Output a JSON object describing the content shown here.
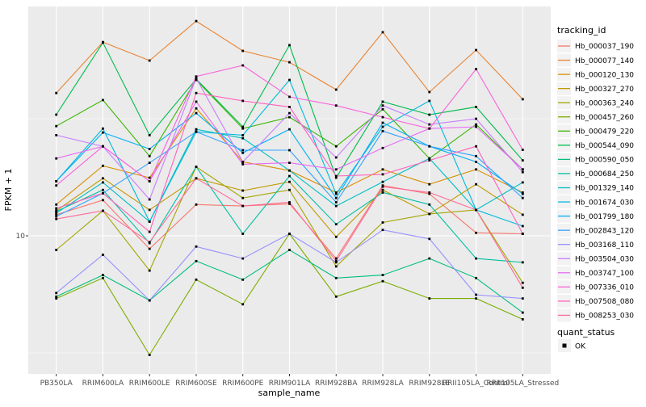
{
  "figure": {
    "y_axis": {
      "label": "FPKM + 1",
      "scale": "log10",
      "tick_labels": [
        "10"
      ]
    },
    "x_axis": {
      "label": "sample_name"
    },
    "legend": {
      "tracking_title": "tracking_id",
      "quant_title": "quant_status",
      "quant_items": [
        {
          "label": "OK",
          "marker": "black-square"
        }
      ]
    },
    "colors": {
      "panel_background": "#EBEBEB",
      "grid": "#FFFFFF",
      "tick_text": "#4D4D4D",
      "marker": "#000000",
      "legend_key_background": "#F2F2F2"
    }
  },
  "chart_data": {
    "type": "line",
    "title": "",
    "xlabel": "sample_name",
    "ylabel": "FPKM + 1",
    "yscale": "log10",
    "ylim": [
      2.6,
      95
    ],
    "grid": "white major gridlines on gray panel; y major at 10",
    "legend_position": "right",
    "marker": "small black square on every point",
    "categories": [
      "PB350LA",
      "RRIM600LA",
      "RRIM600LE",
      "RRIM600SE",
      "RRIM600PE",
      "RRIM901LA",
      "RRIM928BA",
      "RRIM928LA",
      "RRIM928LE",
      "RRII105LA_Control",
      "RRII105LA_Stressed"
    ],
    "series": [
      {
        "name": "Hb_000037_190",
        "color": "#F8766D",
        "values": [
          12.3,
          14.2,
          8.8,
          13.6,
          13.4,
          13.7,
          8.0,
          16.4,
          15.1,
          10.3,
          10.2
        ]
      },
      {
        "name": "Hb_000077_140",
        "color": "#EA8331",
        "values": [
          40.7,
          67.2,
          56.0,
          82.6,
          61.6,
          55.1,
          42.1,
          74.0,
          41.1,
          62.1,
          38.3
        ]
      },
      {
        "name": "Hb_000120_130",
        "color": "#D89000",
        "values": [
          13.6,
          19.9,
          17.7,
          35.0,
          20.7,
          19.0,
          15.3,
          19.2,
          16.6,
          19.2,
          15.3
        ]
      },
      {
        "name": "Hb_000327_270",
        "color": "#C09B00",
        "values": [
          12.8,
          17.6,
          12.9,
          17.6,
          15.6,
          17.0,
          9.9,
          15.7,
          12.4,
          16.6,
          12.3
        ]
      },
      {
        "name": "Hb_000363_240",
        "color": "#A3A500",
        "values": [
          8.7,
          12.8,
          7.1,
          19.7,
          14.5,
          15.7,
          7.4,
          11.4,
          12.4,
          12.9,
          6.3
        ]
      },
      {
        "name": "Hb_000457_260",
        "color": "#7CAE00",
        "values": [
          5.4,
          6.6,
          3.1,
          6.5,
          5.1,
          10.2,
          5.5,
          6.4,
          5.4,
          5.4,
          4.4
        ]
      },
      {
        "name": "Hb_000479_220",
        "color": "#39B600",
        "values": [
          29.4,
          38.0,
          21.9,
          46.3,
          28.7,
          32.1,
          24.1,
          34.7,
          21.4,
          29.9,
          19.2
        ]
      },
      {
        "name": "Hb_000544_090",
        "color": "#00BB4E",
        "values": [
          32.9,
          66.8,
          26.9,
          46.7,
          29.2,
          65.2,
          17.7,
          37.4,
          32.9,
          35.5,
          21.0
        ]
      },
      {
        "name": "Hb_000590_050",
        "color": "#00BF7D",
        "values": [
          5.5,
          6.8,
          5.3,
          7.8,
          6.5,
          8.7,
          6.6,
          6.8,
          8.0,
          6.6,
          4.7
        ]
      },
      {
        "name": "Hb_000684_250",
        "color": "#00C1A3",
        "values": [
          12.7,
          15.7,
          9.3,
          19.7,
          10.2,
          18.0,
          11.2,
          15.3,
          13.6,
          8.0,
          7.7
        ]
      },
      {
        "name": "Hb_001329_140",
        "color": "#00BFC4",
        "values": [
          12.5,
          16.9,
          11.5,
          28.5,
          26.1,
          19.0,
          13.4,
          17.0,
          21.4,
          12.9,
          16.9
        ]
      },
      {
        "name": "Hb_001674_030",
        "color": "#00BADE",
        "values": [
          17.1,
          28.7,
          11.5,
          27.8,
          26.9,
          46.3,
          15.1,
          29.2,
          37.7,
          12.9,
          11.0
        ]
      },
      {
        "name": "Hb_001799_180",
        "color": "#00B0F6",
        "values": [
          17.1,
          27.6,
          23.5,
          33.4,
          22.6,
          28.5,
          14.5,
          30.4,
          24.1,
          20.7,
          15.1
        ]
      },
      {
        "name": "Hb_002843_120",
        "color": "#35A2FF",
        "values": [
          12.1,
          15.2,
          20.5,
          27.8,
          23.2,
          23.2,
          13.9,
          28.0,
          24.1,
          21.9,
          14.5
        ]
      },
      {
        "name": "Hb_003168_110",
        "color": "#9590FF",
        "values": [
          5.7,
          8.3,
          5.3,
          9.0,
          8.0,
          10.2,
          7.7,
          10.6,
          9.7,
          5.6,
          5.4
        ]
      },
      {
        "name": "Hb_003504_030",
        "color": "#C77CFF",
        "values": [
          26.9,
          24.1,
          14.3,
          47.1,
          20.7,
          33.4,
          21.6,
          36.0,
          29.9,
          31.6,
          18.7
        ]
      },
      {
        "name": "Hb_003747_100",
        "color": "#E76BF3",
        "values": [
          21.4,
          24.1,
          17.1,
          37.4,
          20.2,
          20.5,
          19.2,
          23.7,
          28.7,
          29.2,
          19.2
        ]
      },
      {
        "name": "Hb_007336_010",
        "color": "#FA62DB",
        "values": [
          16.4,
          24.1,
          17.1,
          47.9,
          53.4,
          39.2,
          36.0,
          32.1,
          28.7,
          51.5,
          23.3
        ]
      },
      {
        "name": "Hb_007508_080",
        "color": "#FF62BC",
        "values": [
          13.1,
          15.2,
          10.4,
          40.7,
          37.7,
          35.5,
          18.0,
          18.3,
          21.0,
          24.1,
          10.2
        ]
      },
      {
        "name": "Hb_008253_030",
        "color": "#FF6A98",
        "values": [
          11.8,
          12.8,
          9.4,
          17.6,
          13.4,
          13.9,
          7.8,
          16.2,
          15.3,
          12.9,
          6.0
        ]
      }
    ]
  }
}
